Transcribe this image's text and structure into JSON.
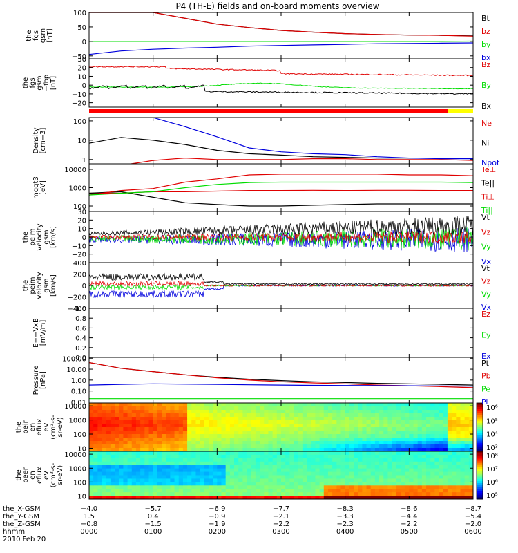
{
  "title": "P4 (TH-E) fields and on-board moments overview",
  "colors": {
    "black": "#000000",
    "red": "#e00000",
    "green": "#00dd00",
    "blue": "#0000dd",
    "yellow": "#ffff00",
    "bar_red": "#ff0000"
  },
  "panels": [
    {
      "id": "p1",
      "ylabel": [
        "the",
        "fgs",
        "gsm",
        "[nT]"
      ],
      "yticks": [
        "100",
        "50",
        "0",
        "−50"
      ],
      "legend": [
        {
          "text": "Bt",
          "color": "#000000"
        },
        {
          "text": "bz",
          "color": "#e00000"
        },
        {
          "text": "by",
          "color": "#00dd00"
        },
        {
          "text": "bx",
          "color": "#0000dd"
        }
      ]
    },
    {
      "id": "p2",
      "ylabel": [
        "the",
        "fgs",
        "gsm",
        "−fbp",
        "[nT]"
      ],
      "yticks": [
        "30",
        "20",
        "10",
        "0",
        "−10",
        "−20"
      ],
      "legend": [
        {
          "text": "Bz",
          "color": "#e00000"
        },
        {
          "text": "By",
          "color": "#00dd00"
        },
        {
          "text": "Bx",
          "color": "#000000"
        }
      ]
    },
    {
      "id": "p3",
      "ylabel": [
        "Density",
        "[cm−3]"
      ],
      "yticks": [
        "100",
        "10",
        "1"
      ],
      "legend": [
        {
          "text": "Ne",
          "color": "#e00000"
        },
        {
          "text": "Ni",
          "color": "#000000"
        },
        {
          "text": "Npot",
          "color": "#0000dd"
        }
      ]
    },
    {
      "id": "p4",
      "ylabel": [
        "mgqt3",
        "[eV]"
      ],
      "yticks": [
        "10000",
        "1000",
        "100"
      ],
      "legend": [
        {
          "text": "Te⊥",
          "color": "#e00000"
        },
        {
          "text": "Te||",
          "color": "#000000"
        },
        {
          "text": "Ti⊥",
          "color": "#e00000"
        },
        {
          "text": "Ti||",
          "color": "#00dd00"
        }
      ]
    },
    {
      "id": "p5",
      "ylabel": [
        "the",
        "peim",
        "velocity",
        "gsm",
        "[km/s]"
      ],
      "yticks": [
        "30",
        "20",
        "10",
        "0",
        "−10",
        "−20"
      ],
      "legend": [
        {
          "text": "Vt",
          "color": "#000000"
        },
        {
          "text": "Vz",
          "color": "#e00000"
        },
        {
          "text": "Vy",
          "color": "#00dd00"
        },
        {
          "text": "Vx",
          "color": "#0000dd"
        }
      ]
    },
    {
      "id": "p6",
      "ylabel": [
        "the",
        "peim",
        "velocity",
        "gsm",
        "[km/s]"
      ],
      "yticks": [
        "400",
        "200",
        "0",
        "−200",
        "−400"
      ],
      "legend": [
        {
          "text": "Vt",
          "color": "#000000"
        },
        {
          "text": "Vz",
          "color": "#e00000"
        },
        {
          "text": "Vy",
          "color": "#00dd00"
        },
        {
          "text": "Vx",
          "color": "#0000dd"
        }
      ]
    },
    {
      "id": "p7",
      "ylabel": [
        "E=−VxB",
        "[mV/m]"
      ],
      "yticks": [
        "1.0",
        "0.8",
        "0.6",
        "0.4",
        "0.2",
        "0.0"
      ],
      "legend": [
        {
          "text": "Ez",
          "color": "#e00000"
        },
        {
          "text": "Ey",
          "color": "#00dd00"
        },
        {
          "text": "Ex",
          "color": "#0000dd"
        }
      ]
    },
    {
      "id": "p8",
      "ylabel": [
        "Pressure",
        "[nPa]"
      ],
      "yticks": [
        "100.00",
        "10.00",
        "1.00",
        "0.10",
        "0.01"
      ],
      "legend": [
        {
          "text": "Pt",
          "color": "#000000"
        },
        {
          "text": "Pb",
          "color": "#e00000"
        },
        {
          "text": "Pe",
          "color": "#00dd00"
        },
        {
          "text": "Pi",
          "color": "#0000dd"
        }
      ]
    },
    {
      "id": "p9",
      "ylabel": [
        "the",
        "peir",
        "en",
        "eflux",
        "eV",
        "(cm²-s-",
        "sr-eV)"
      ],
      "yticks": [
        "10000",
        "1000",
        "100",
        "10"
      ],
      "cbar": [
        "10⁶",
        "10⁵",
        "10⁴",
        "10³"
      ]
    },
    {
      "id": "p10",
      "ylabel": [
        "the",
        "peer",
        "en",
        "eflux",
        "eV",
        "(cm²-s-",
        "sr-eV)"
      ],
      "yticks": [
        "10000",
        "1000",
        "100",
        "10"
      ],
      "cbar": [
        "10⁸",
        "10⁷",
        "10⁶",
        "10⁵"
      ]
    }
  ],
  "ephemeris": {
    "labels": [
      "the_X-GSM",
      "the_Y-GSM",
      "the_Z-GSM",
      "hhmm",
      "2010 Feb 20"
    ],
    "x": [
      "−4.0",
      "−5.7",
      "−6.9",
      "−7.7",
      "−8.3",
      "−8.6",
      "−8.7"
    ],
    "y": [
      "1.5",
      "0.4",
      "−0.9",
      "−2.1",
      "−3.3",
      "−4.4",
      "−5.4"
    ],
    "z": [
      "−0.8",
      "−1.5",
      "−1.9",
      "−2.2",
      "−2.3",
      "−2.2",
      "−2.0"
    ],
    "hhmm": [
      "0000",
      "0100",
      "0200",
      "0300",
      "0400",
      "0500",
      "0600"
    ]
  },
  "chart_data": {
    "type": "line",
    "title": "P4 (TH-E) fields and on-board moments overview",
    "x_label": "hhmm",
    "x": [
      "0000",
      "0030",
      "0100",
      "0130",
      "0200",
      "0230",
      "0300",
      "0330",
      "0400",
      "0430",
      "0500",
      "0530",
      "0600"
    ],
    "series": [
      {
        "name": "Bt",
        "panel": "p1",
        "values": [
          100,
          100,
          100,
          80,
          60,
          48,
          38,
          32,
          27,
          24,
          22,
          21,
          19
        ]
      },
      {
        "name": "bz",
        "panel": "p1",
        "values": [
          100,
          100,
          100,
          80,
          60,
          48,
          38,
          32,
          27,
          24,
          22,
          21,
          18
        ]
      },
      {
        "name": "by",
        "panel": "p1",
        "values": [
          0,
          0,
          0,
          0,
          0,
          0,
          0,
          0,
          0,
          0,
          0,
          0,
          1
        ]
      },
      {
        "name": "bx",
        "panel": "p1",
        "values": [
          -45,
          -33,
          -27,
          -23,
          -20,
          -16,
          -14,
          -12,
          -10,
          -8,
          -7,
          -6,
          -5
        ]
      },
      {
        "name": "Ne",
        "panel": "p3",
        "values": [
          0.4,
          0.5,
          0.9,
          1.2,
          1.0,
          1.0,
          1.0,
          1.1,
          1.1,
          1.0,
          1.0,
          1.0,
          0.9
        ]
      },
      {
        "name": "Ni",
        "panel": "p3",
        "values": [
          7,
          14,
          10,
          6,
          3,
          2,
          1.7,
          1.4,
          1.3,
          1.2,
          1.2,
          1.2,
          1.2
        ]
      },
      {
        "name": "Npot",
        "panel": "p3",
        "values": [
          null,
          null,
          150,
          50,
          15,
          4,
          2.5,
          2,
          1.8,
          1.4,
          1.2,
          1.1,
          1.1
        ]
      },
      {
        "name": "Te⊥",
        "panel": "p4",
        "values": [
          500,
          500,
          600,
          600,
          650,
          700,
          700,
          720,
          700,
          720,
          720,
          700,
          700
        ]
      },
      {
        "name": "Te||",
        "panel": "p4",
        "values": [
          500,
          600,
          300,
          150,
          120,
          100,
          100,
          110,
          120,
          130,
          130,
          130,
          130
        ]
      },
      {
        "name": "Ti⊥",
        "panel": "p4",
        "values": [
          400,
          700,
          900,
          2000,
          3000,
          5000,
          5500,
          5500,
          5500,
          5500,
          5000,
          5000,
          4500
        ]
      },
      {
        "name": "Ti||",
        "panel": "p4",
        "values": [
          400,
          500,
          600,
          1000,
          1500,
          1900,
          2000,
          2000,
          2000,
          2000,
          2000,
          2000,
          1900
        ]
      },
      {
        "name": "Pt",
        "panel": "p8",
        "values": [
          40,
          12,
          6,
          3,
          1.8,
          1.2,
          0.9,
          0.7,
          0.6,
          0.5,
          0.45,
          0.4,
          0.35
        ]
      },
      {
        "name": "Pb",
        "panel": "p8",
        "values": [
          40,
          12,
          6,
          3,
          1.6,
          1.0,
          0.7,
          0.55,
          0.45,
          0.35,
          0.3,
          0.25,
          0.2
        ]
      },
      {
        "name": "Pi",
        "panel": "p8",
        "values": [
          0.35,
          0.4,
          0.45,
          0.42,
          0.4,
          0.37,
          0.35,
          0.33,
          0.32,
          0.31,
          0.3,
          0.29,
          0.28
        ]
      },
      {
        "name": "Pe",
        "panel": "p8",
        "values": [
          0.02,
          0.02,
          0.02,
          0.02,
          0.02,
          0.02,
          0.02,
          0.02,
          0.02,
          0.02,
          0.02,
          0.02,
          0.02
        ]
      }
    ]
  }
}
